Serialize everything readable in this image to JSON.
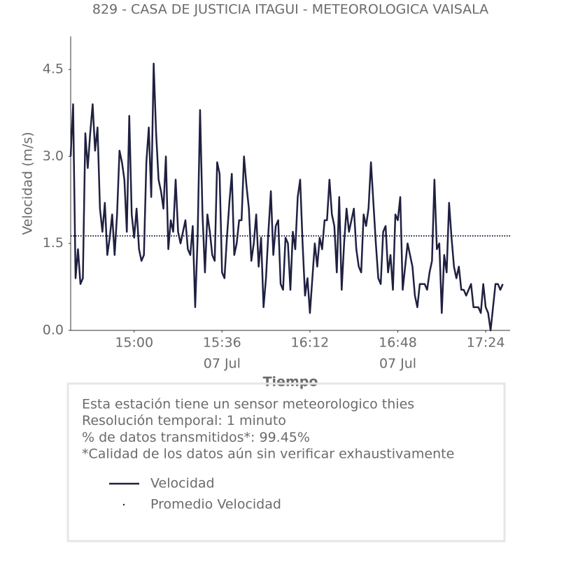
{
  "chart_data": {
    "type": "line",
    "title": "829 - CASA DE JUSTICIA ITAGUI - METEOROLOGICA VAISALA",
    "x_label": "Tiempo",
    "y_label": "Velocidad (m/s)",
    "x": [
      "14:34",
      "14:35",
      "14:36",
      "14:37",
      "14:38",
      "14:39",
      "14:40",
      "14:41",
      "14:42",
      "14:43",
      "14:44",
      "14:45",
      "14:46",
      "14:47",
      "14:48",
      "14:49",
      "14:50",
      "14:51",
      "14:52",
      "14:53",
      "14:54",
      "14:55",
      "14:56",
      "14:57",
      "14:58",
      "14:59",
      "15:00",
      "15:01",
      "15:02",
      "15:03",
      "15:04",
      "15:05",
      "15:06",
      "15:07",
      "15:08",
      "15:09",
      "15:10",
      "15:11",
      "15:12",
      "15:13",
      "15:14",
      "15:15",
      "15:16",
      "15:17",
      "15:18",
      "15:19",
      "15:20",
      "15:21",
      "15:22",
      "15:23",
      "15:24",
      "15:25",
      "15:26",
      "15:27",
      "15:28",
      "15:29",
      "15:30",
      "15:31",
      "15:32",
      "15:33",
      "15:34",
      "15:35",
      "15:36",
      "15:37",
      "15:38",
      "15:39",
      "15:40",
      "15:41",
      "15:42",
      "15:43",
      "15:44",
      "15:45",
      "15:46",
      "15:47",
      "15:48",
      "15:49",
      "15:50",
      "15:51",
      "15:52",
      "15:53",
      "15:54",
      "15:55",
      "15:56",
      "15:57",
      "15:58",
      "15:59",
      "16:00",
      "16:01",
      "16:02",
      "16:03",
      "16:04",
      "16:05",
      "16:06",
      "16:07",
      "16:08",
      "16:09",
      "16:10",
      "16:11",
      "16:12",
      "16:13",
      "16:14",
      "16:15",
      "16:16",
      "16:17",
      "16:18",
      "16:19",
      "16:20",
      "16:21",
      "16:22",
      "16:23",
      "16:24",
      "16:25",
      "16:26",
      "16:27",
      "16:28",
      "16:29",
      "16:30",
      "16:31",
      "16:32",
      "16:33",
      "16:34",
      "16:35",
      "16:36",
      "16:37",
      "16:38",
      "16:39",
      "16:40",
      "16:41",
      "16:42",
      "16:43",
      "16:44",
      "16:45",
      "16:46",
      "16:47",
      "16:48",
      "16:49",
      "16:50",
      "16:51",
      "16:52",
      "16:53",
      "16:54",
      "16:55",
      "16:56",
      "16:57",
      "16:58",
      "16:59",
      "17:00",
      "17:01",
      "17:02",
      "17:03",
      "17:04",
      "17:05",
      "17:06",
      "17:07",
      "17:08",
      "17:09",
      "17:10",
      "17:11",
      "17:12",
      "17:13",
      "17:14",
      "17:15",
      "17:16",
      "17:17",
      "17:18",
      "17:19",
      "17:20",
      "17:21",
      "17:22",
      "17:23",
      "17:24",
      "17:25",
      "17:26",
      "17:27",
      "17:28",
      "17:29",
      "17:30",
      "17:31"
    ],
    "series": [
      {
        "name": "Velocidad",
        "color": "#1f2041",
        "values": [
          3.0,
          3.9,
          0.9,
          1.4,
          0.8,
          0.9,
          3.4,
          2.8,
          3.4,
          3.9,
          3.1,
          3.5,
          2.1,
          1.7,
          2.2,
          1.3,
          1.6,
          2.0,
          1.3,
          2.0,
          3.1,
          2.9,
          2.6,
          1.7,
          3.7,
          2.0,
          1.6,
          2.1,
          1.4,
          1.2,
          1.3,
          2.9,
          3.5,
          2.3,
          4.6,
          3.4,
          2.6,
          2.4,
          2.1,
          3.0,
          1.4,
          1.9,
          1.7,
          2.6,
          1.7,
          1.5,
          1.7,
          1.9,
          1.4,
          1.3,
          1.8,
          0.4,
          1.6,
          3.8,
          2.0,
          1.0,
          2.0,
          1.7,
          1.3,
          1.2,
          2.9,
          2.7,
          1.0,
          0.9,
          1.6,
          2.2,
          2.7,
          1.3,
          1.5,
          1.9,
          1.9,
          3.0,
          2.5,
          2.1,
          1.2,
          1.5,
          2.0,
          1.1,
          1.6,
          0.4,
          0.9,
          1.7,
          2.4,
          1.3,
          1.8,
          1.9,
          0.8,
          0.7,
          1.6,
          1.5,
          0.7,
          1.7,
          1.4,
          2.3,
          2.6,
          1.5,
          0.6,
          0.9,
          0.3,
          0.9,
          1.5,
          1.1,
          1.6,
          1.4,
          1.9,
          1.9,
          2.6,
          2.0,
          1.8,
          1.0,
          2.3,
          0.7,
          1.5,
          2.1,
          1.7,
          1.9,
          2.1,
          1.4,
          1.1,
          1.0,
          2.0,
          1.8,
          2.1,
          2.9,
          2.2,
          1.5,
          0.9,
          0.8,
          1.7,
          1.8,
          1.0,
          1.3,
          0.7,
          2.0,
          1.9,
          2.3,
          0.7,
          1.1,
          1.5,
          1.3,
          1.1,
          0.6,
          0.4,
          0.8,
          0.8,
          0.8,
          0.7,
          1.0,
          1.2,
          2.6,
          1.4,
          1.5,
          0.3,
          1.3,
          1.0,
          2.2,
          1.6,
          1.1,
          0.9,
          1.1,
          0.7,
          0.7,
          0.6,
          0.7,
          0.8,
          0.4,
          0.4,
          0.4,
          0.3,
          0.8,
          0.4,
          0.3,
          0.0,
          0.4,
          0.8,
          0.8,
          0.7,
          0.8
        ]
      }
    ],
    "reference_lines": [
      {
        "name": "Promedio Velocidad",
        "value": 1.63,
        "color": "#1f2041"
      }
    ],
    "xlim": [
      "14:34",
      "17:34"
    ],
    "xticks": [
      "15:00",
      "15:36",
      "16:12",
      "16:48",
      "17:24"
    ],
    "xtick_dates": [
      {
        "value": "15:36",
        "label": "07 Jul"
      },
      {
        "value": "16:48",
        "label": "07 Jul"
      }
    ],
    "ylim": [
      0,
      5.07
    ],
    "yticks": [
      {
        "value": 0,
        "label": "0.0"
      },
      1.5,
      {
        "value": 3,
        "label": "3.0"
      },
      4.5
    ],
    "grid": false,
    "notes": [
      "Esta estación tiene un sensor meteorologico thies",
      "Resolución temporal: 1 minuto",
      "% de datos transmitidos*: 99.45%",
      "*Calidad de los datos aún sin verificar exhaustivamente"
    ]
  }
}
